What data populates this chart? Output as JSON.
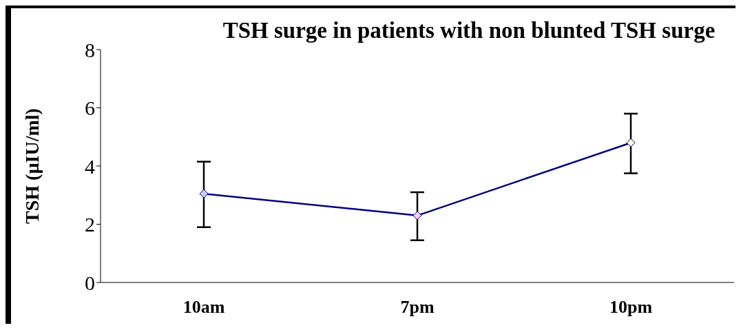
{
  "chart_data": {
    "type": "line",
    "title": "TSH surge in patients with non blunted TSH surge",
    "ylabel": "TSH (µIU/ml)",
    "categories": [
      "10am",
      "7pm",
      "10pm"
    ],
    "series": [
      {
        "color": "#000080",
        "values": [
          3.05,
          2.3,
          4.8
        ],
        "errors": [
          [
            1.9,
            4.15
          ],
          [
            1.45,
            3.1
          ],
          [
            3.75,
            5.8
          ]
        ]
      }
    ],
    "ylim": [
      0,
      8
    ],
    "yticks": [
      0,
      2,
      4,
      6,
      8
    ],
    "marker": "diamond",
    "line_style": "solid"
  }
}
